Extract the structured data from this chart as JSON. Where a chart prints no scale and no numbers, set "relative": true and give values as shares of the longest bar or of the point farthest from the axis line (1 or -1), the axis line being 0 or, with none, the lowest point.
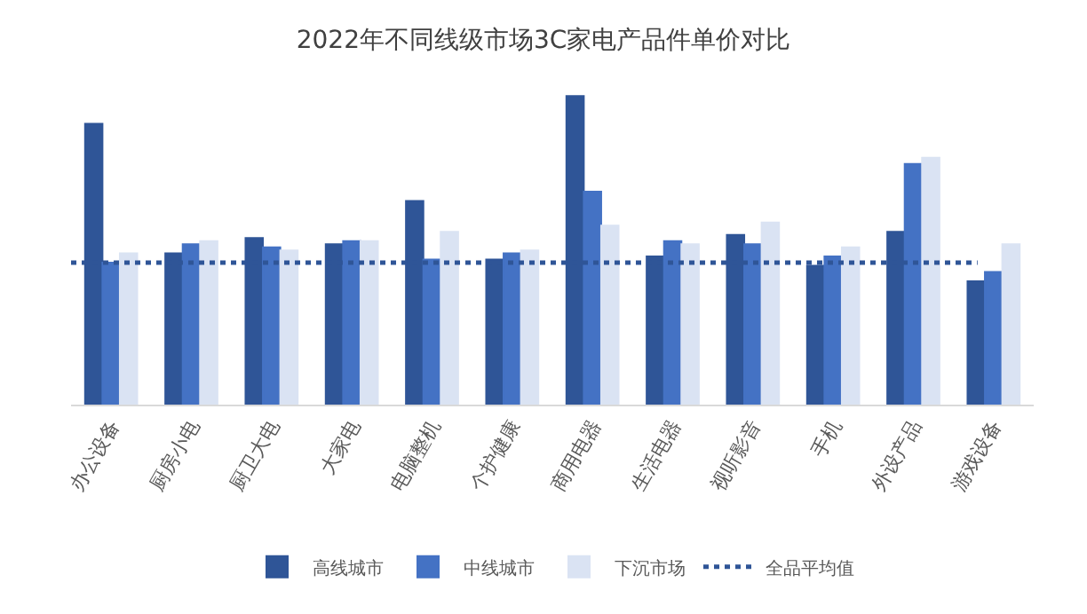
{
  "chart_data": {
    "type": "bar",
    "title": "2022年不同线级市场3C家电产品件单价对比",
    "categories": [
      "办公设备",
      "厨房小电",
      "厨卫大电",
      "大家电",
      "电脑整机",
      "个护健康",
      "商用电器",
      "生活电器",
      "视听影音",
      "手机",
      "外设产品",
      "游戏设备"
    ],
    "relative": true,
    "legend": "bottom",
    "series": [
      {
        "name": "高线城市",
        "color": "#2f5597",
        "values": [
          0.91,
          0.49,
          0.54,
          0.52,
          0.66,
          0.47,
          1,
          0.48,
          0.55,
          0.45,
          0.56,
          0.4
        ]
      },
      {
        "name": "中线城市",
        "color": "#4472c4",
        "values": [
          0.46,
          0.52,
          0.51,
          0.53,
          0.47,
          0.49,
          0.69,
          0.53,
          0.52,
          0.48,
          0.78,
          0.43
        ]
      },
      {
        "name": "下沉市场",
        "color": "#dae3f3",
        "values": [
          0.49,
          0.53,
          0.5,
          0.53,
          0.56,
          0.5,
          0.58,
          0.52,
          0.59,
          0.51,
          0.8,
          0.52
        ]
      }
    ],
    "ref_lines": [
      {
        "axis": "y",
        "value": 0.46,
        "label": "全品平均值",
        "color": "#2f5597",
        "line_style": "dotted"
      }
    ]
  }
}
